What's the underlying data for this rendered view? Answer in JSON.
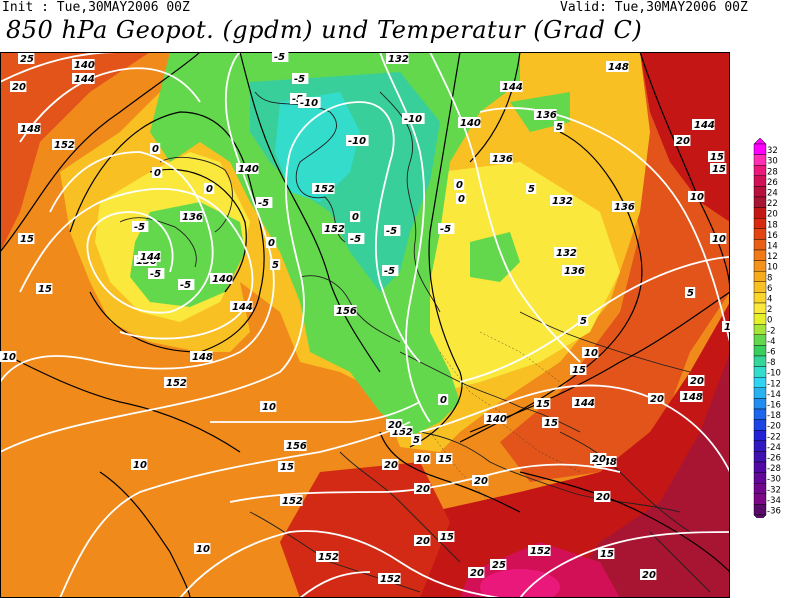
{
  "header": {
    "init": "Init : Tue,30MAY2006 00Z",
    "valid": "Valid: Tue,30MAY2006 00Z",
    "title": "850 hPa Geopot. (gpdm) und Temperatur (Grad C)"
  },
  "legend": {
    "values": [
      "32",
      "30",
      "28",
      "26",
      "24",
      "22",
      "20",
      "18",
      "16",
      "14",
      "12",
      "10",
      "8",
      "6",
      "4",
      "2",
      "0",
      "-2",
      "-4",
      "-6",
      "-8",
      "-10",
      "-12",
      "-14",
      "-16",
      "-18",
      "-20",
      "-22",
      "-24",
      "-26",
      "-28",
      "-30",
      "-32",
      "-34",
      "-36"
    ],
    "colors": [
      "#ff00ff",
      "#ff2fb4",
      "#e9187a",
      "#d11056",
      "#b8103c",
      "#a81532",
      "#c51616",
      "#d92a10",
      "#e24512",
      "#ea5f16",
      "#f07a18",
      "#f3921c",
      "#f6aa1e",
      "#f8c023",
      "#fad52b",
      "#fbe83c",
      "#e6f02a",
      "#a6e43a",
      "#64d84c",
      "#38cf5c",
      "#34d69a",
      "#34dccc",
      "#2fd4f0",
      "#28b2f0",
      "#228cf0",
      "#1c66ee",
      "#1a44e4",
      "#2222d4",
      "#3018c0",
      "#4010b0",
      "#5208a4",
      "#620898",
      "#70088e",
      "#7c0888",
      "#5a0a6a"
    ]
  },
  "map": {
    "theme": "850 hPa geopotential and temperature, Europe",
    "geopotential_labels": [
      {
        "text": "140"
      },
      {
        "text": "144"
      },
      {
        "text": "132"
      },
      {
        "text": "148"
      },
      {
        "text": "144"
      },
      {
        "text": "136"
      },
      {
        "text": "144"
      },
      {
        "text": "148"
      },
      {
        "text": "140"
      },
      {
        "text": "152"
      },
      {
        "text": "152"
      },
      {
        "text": "140"
      },
      {
        "text": "136"
      },
      {
        "text": "132"
      },
      {
        "text": "136"
      },
      {
        "text": "136"
      },
      {
        "text": "152"
      },
      {
        "text": "132"
      },
      {
        "text": "136"
      },
      {
        "text": "136"
      },
      {
        "text": "140"
      },
      {
        "text": "144"
      },
      {
        "text": "156"
      },
      {
        "text": "148"
      },
      {
        "text": "152"
      },
      {
        "text": "140"
      },
      {
        "text": "144"
      },
      {
        "text": "148"
      },
      {
        "text": "148"
      },
      {
        "text": "152"
      },
      {
        "text": "156"
      },
      {
        "text": "148"
      },
      {
        "text": "152"
      },
      {
        "text": "152"
      },
      {
        "text": "152"
      },
      {
        "text": "152"
      },
      {
        "text": "144"
      }
    ],
    "temperature_labels": [
      {
        "text": "20"
      },
      {
        "text": "-5"
      },
      {
        "text": "-5"
      },
      {
        "text": "-5"
      },
      {
        "text": "-10"
      },
      {
        "text": "-10"
      },
      {
        "text": "-10"
      },
      {
        "text": "0"
      },
      {
        "text": "0"
      },
      {
        "text": "5"
      },
      {
        "text": "0"
      },
      {
        "text": "20"
      },
      {
        "text": "15"
      },
      {
        "text": "15"
      },
      {
        "text": "-5"
      },
      {
        "text": "-5"
      },
      {
        "text": "-5"
      },
      {
        "text": "0"
      },
      {
        "text": "0"
      },
      {
        "text": "10"
      },
      {
        "text": "5"
      },
      {
        "text": "-5"
      },
      {
        "text": "15"
      },
      {
        "text": "-5"
      },
      {
        "text": "-5"
      },
      {
        "text": "-5"
      },
      {
        "text": "-5"
      },
      {
        "text": "0"
      },
      {
        "text": "5"
      },
      {
        "text": "15"
      },
      {
        "text": "10"
      },
      {
        "text": "0"
      },
      {
        "text": "5"
      },
      {
        "text": "5"
      },
      {
        "text": "10"
      },
      {
        "text": "10"
      },
      {
        "text": "10"
      },
      {
        "text": "15"
      },
      {
        "text": "15"
      },
      {
        "text": "15"
      },
      {
        "text": "20"
      },
      {
        "text": "0"
      },
      {
        "text": "5"
      },
      {
        "text": "10"
      },
      {
        "text": "15"
      },
      {
        "text": "10"
      },
      {
        "text": "15"
      },
      {
        "text": "20"
      },
      {
        "text": "20"
      },
      {
        "text": "20"
      },
      {
        "text": "20"
      },
      {
        "text": "10"
      },
      {
        "text": "20"
      },
      {
        "text": "15"
      },
      {
        "text": "20"
      },
      {
        "text": "25"
      },
      {
        "text": "20"
      },
      {
        "text": "20"
      },
      {
        "text": "15"
      },
      {
        "text": "20"
      },
      {
        "text": "20"
      },
      {
        "text": "25"
      }
    ]
  }
}
